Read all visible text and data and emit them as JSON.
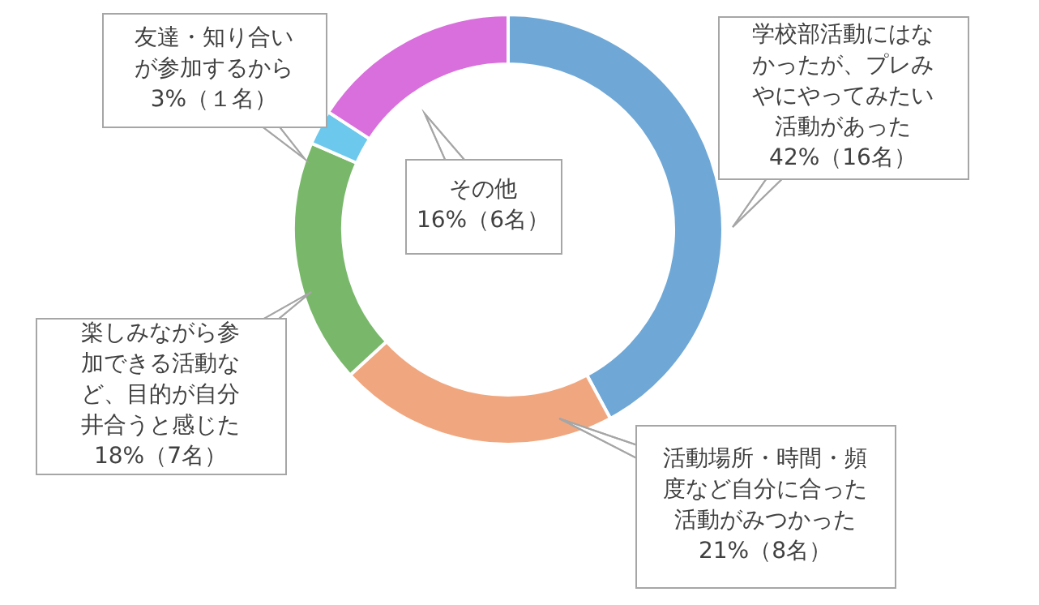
{
  "chart_data": {
    "type": "donut",
    "categories": [
      "学校部活動にはなかったが、プレみやにやってみたい活動があった",
      "活動場所・時間・頻度など自分に合った活動がみつかった",
      "楽しみながら参加できる活動など、目的が自分井合うと感じた",
      "友達・知り合いが参加するから",
      "その他"
    ],
    "values": [
      16,
      8,
      7,
      1,
      6
    ],
    "value_labels": [
      "42%（16名）",
      "21%（8名）",
      "18%（7名）",
      "3%（１名）",
      "16%（6名）"
    ],
    "colors": [
      "#6fa8d6",
      "#f0a77f",
      "#79b86b",
      "#6cc8ec",
      "#d96fdc"
    ],
    "legend": false
  }
}
